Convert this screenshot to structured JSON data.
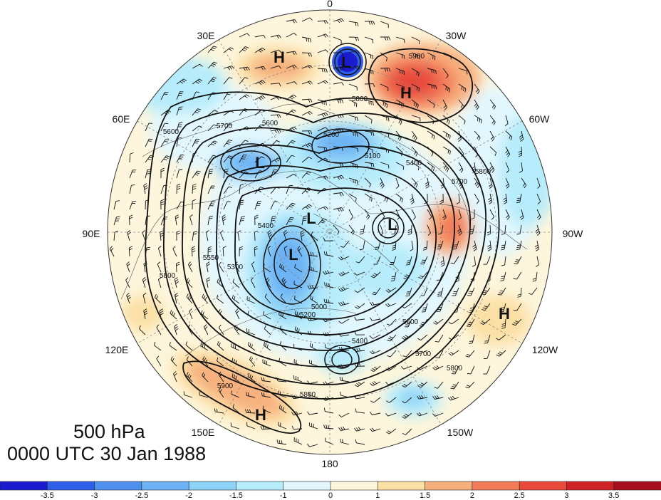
{
  "title": {
    "level": "500 hPa",
    "time": "0000 UTC 30 Jan 1988"
  },
  "lon_labels": [
    {
      "id": "lon-0",
      "text": "0"
    },
    {
      "id": "lon-30w",
      "text": "30W"
    },
    {
      "id": "lon-60w",
      "text": "60W"
    },
    {
      "id": "lon-90w",
      "text": "90W"
    },
    {
      "id": "lon-120w",
      "text": "120W"
    },
    {
      "id": "lon-150w",
      "text": "150W"
    },
    {
      "id": "lon-180",
      "text": "180"
    },
    {
      "id": "lon-150e",
      "text": "150E"
    },
    {
      "id": "lon-120e",
      "text": "120E"
    },
    {
      "id": "lon-90e",
      "text": "90E"
    },
    {
      "id": "lon-60e",
      "text": "60E"
    },
    {
      "id": "lon-30e",
      "text": "30E"
    }
  ],
  "pressure_centers": [
    {
      "id": "high-europe",
      "label": "H"
    },
    {
      "id": "low-arctic-small",
      "label": "L"
    },
    {
      "id": "high-atlantic",
      "label": "H"
    },
    {
      "id": "low-siberia-west",
      "label": "L"
    },
    {
      "id": "low-siberia-east",
      "label": "L"
    },
    {
      "id": "low-polar",
      "label": "L"
    },
    {
      "id": "low-canada",
      "label": "L"
    },
    {
      "id": "high-pacific-ne",
      "label": "H"
    },
    {
      "id": "high-pacific-w",
      "label": "H"
    }
  ],
  "contour_labels": [
    "5900",
    "5800",
    "5700",
    "5600",
    "5200",
    "5100",
    "5400",
    "5700",
    "5800",
    "5300",
    "5400",
    "5550",
    "5800",
    "5000",
    "5200",
    "5600",
    "5400",
    "5700",
    "5800",
    "5900",
    "5800",
    "5600"
  ],
  "colorbar": {
    "colors": [
      "#1c1ccf",
      "#2f5fe8",
      "#4f8fee",
      "#6cb2f4",
      "#8fd2f7",
      "#b6ecfb",
      "#e2f7fd",
      "#fdf6dc",
      "#fbe0a6",
      "#f6b07e",
      "#f27b5a",
      "#e84a3c",
      "#cf2227",
      "#a5101c"
    ],
    "ticks": [
      "-3.5",
      "-3",
      "-2.5",
      "-2",
      "-1.5",
      "-1",
      "0",
      "1",
      "1.5",
      "2",
      "2.5",
      "3",
      "3.5"
    ]
  }
}
